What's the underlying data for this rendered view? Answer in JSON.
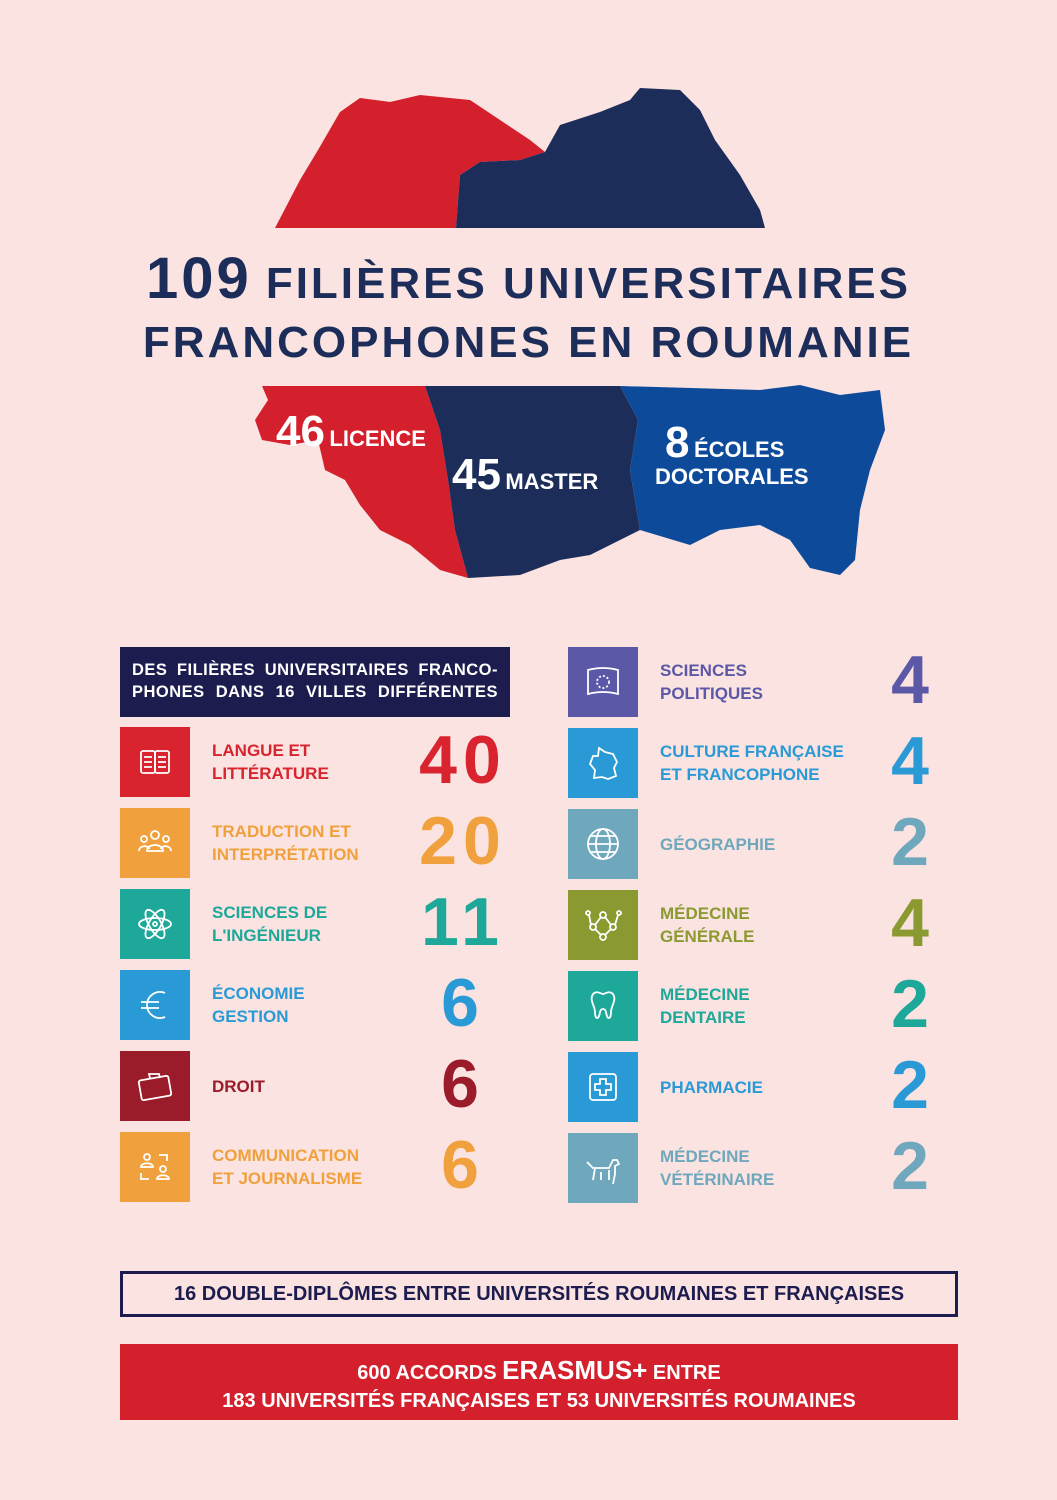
{
  "colors": {
    "background": "#fbe3e1",
    "red": "#d41f2c",
    "navy": "#1c2d5a",
    "blue": "#0d4b9a"
  },
  "title": {
    "number": "109",
    "line1": "FILIÈRES UNIVERSITAIRES",
    "line2": "FRANCOPHONES EN ROUMANIE"
  },
  "stats": [
    {
      "number": "46",
      "label": "LICENCE"
    },
    {
      "number": "45",
      "label": "MASTER"
    },
    {
      "number": "8",
      "label": "ÉCOLES",
      "label2": "DOCTORALES"
    }
  ],
  "header_box": "DES FILIÈRES UNIVERSITAIRES FRANCO-PHONES DANS 16 VILLES DIFFÉRENTES",
  "left": [
    {
      "label": "LANGUE ET\nLITTÉRATURE",
      "value": "40",
      "color": "#d9232e",
      "icon": "book-icon"
    },
    {
      "label": "TRADUCTION ET\nINTERPRÉTATION",
      "value": "20",
      "color": "#f0a03c",
      "icon": "people-group-icon"
    },
    {
      "label": "SCIENCES DE\nL'INGÉNIEUR",
      "value": "11",
      "color": "#1ea89a",
      "icon": "atom-icon"
    },
    {
      "label": "ÉCONOMIE\nGESTION",
      "value": "6",
      "color": "#2a9ad6",
      "icon": "euro-icon"
    },
    {
      "label": "DROIT",
      "value": "6",
      "color": "#9a1b2a",
      "icon": "briefcase-icon"
    },
    {
      "label": "COMMUNICATION\nET JOURNALISME",
      "value": "6",
      "color": "#f0a03c",
      "icon": "communication-icon"
    }
  ],
  "right": [
    {
      "label": "SCIENCES\nPOLITIQUES",
      "value": "4",
      "color": "#5b58a8",
      "icon": "eu-flag-icon"
    },
    {
      "label": "CULTURE FRANÇAISE\nET FRANCOPHONE",
      "value": "4",
      "color": "#2a9ad6",
      "icon": "france-map-icon"
    },
    {
      "label": "GÉOGRAPHIE",
      "value": "2",
      "color": "#6fa8bc",
      "icon": "globe-icon"
    },
    {
      "label": "MÉDECINE\nGÉNÉRALE",
      "value": "4",
      "color": "#8a9a30",
      "icon": "molecule-icon"
    },
    {
      "label": "MÉDECINE\nDENTAIRE",
      "value": "2",
      "color": "#1ea89a",
      "icon": "tooth-icon"
    },
    {
      "label": "PHARMACIE",
      "value": "2",
      "color": "#2a9ad6",
      "icon": "medical-cross-icon"
    },
    {
      "label": "MÉDECINE\nVÉTÉRINAIRE",
      "value": "2",
      "color": "#6fa8bc",
      "icon": "dog-icon"
    }
  ],
  "double_diplomes": "16 DOUBLE-DIPLÔMES ENTRE UNIVERSITÉS ROUMAINES ET FRANÇAISES",
  "erasmus": {
    "pre": "600 ACCORDS ",
    "brand": "ERASMUS+",
    "post": " ENTRE",
    "line2": "183 UNIVERSITÉS FRANÇAISES ET 53 UNIVERSITÉS ROUMAINES"
  }
}
